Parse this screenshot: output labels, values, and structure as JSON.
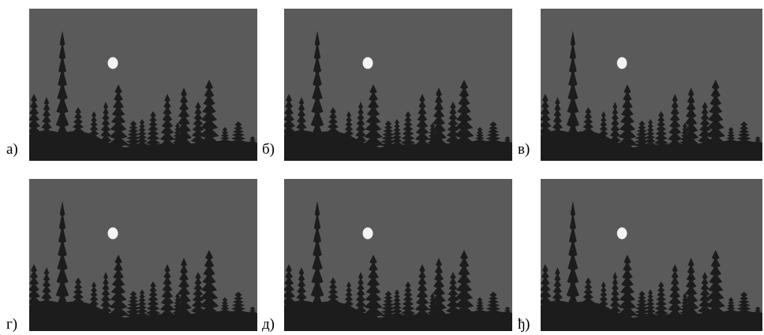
{
  "panels": [
    {
      "label": "а)"
    },
    {
      "label": "б)"
    },
    {
      "label": "в)"
    },
    {
      "label": "г)"
    },
    {
      "label": "д)"
    },
    {
      "label": "ђ)"
    }
  ],
  "colors": {
    "sky": "#5a5a5a",
    "trees": "#1c1c1c",
    "moon": "#f4f4f4"
  }
}
